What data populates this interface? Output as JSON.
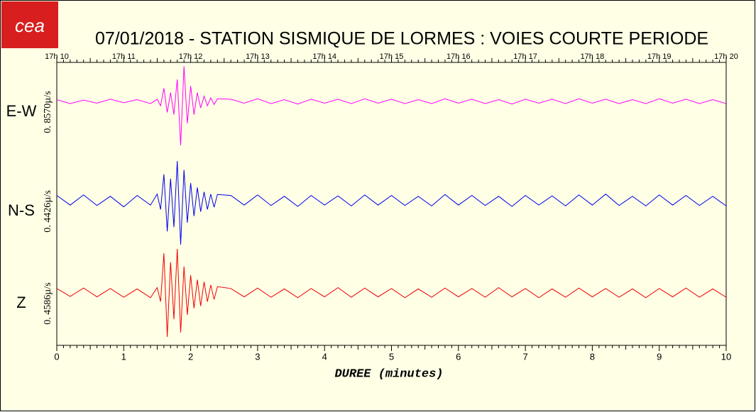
{
  "chart_data": {
    "type": "line",
    "logo": "cea",
    "title": "07/01/2018  -  STATION SISMIQUE DE LORMES : VOIES COURTE PERIODE",
    "xlabel": "DUREE (minutes)",
    "xlim": [
      0,
      10
    ],
    "xticks": [
      0,
      1,
      2,
      3,
      4,
      5,
      6,
      7,
      8,
      9,
      10
    ],
    "x2ticks": [
      {
        "value": 0,
        "label": "17h 10"
      },
      {
        "value": 1,
        "label": "17h 11"
      },
      {
        "value": 2,
        "label": "17h 12"
      },
      {
        "value": 3,
        "label": "17h 13"
      },
      {
        "value": 4,
        "label": "17h 14"
      },
      {
        "value": 5,
        "label": "17h 15"
      },
      {
        "value": 6,
        "label": "17h 16"
      },
      {
        "value": 7,
        "label": "17h 17"
      },
      {
        "value": 8,
        "label": "17h 18"
      },
      {
        "value": 9,
        "label": "17h 19"
      },
      {
        "value": 10,
        "label": "17h 20"
      }
    ],
    "ylim": [
      -1,
      1
    ],
    "x": [
      0,
      0.2,
      0.4,
      0.6,
      0.8,
      1,
      1.2,
      1.4,
      1.5,
      1.55,
      1.6,
      1.65,
      1.7,
      1.75,
      1.8,
      1.85,
      1.9,
      1.95,
      2,
      2.05,
      2.1,
      2.15,
      2.2,
      2.25,
      2.3,
      2.35,
      2.4,
      2.6,
      2.8,
      3,
      3.2,
      3.4,
      3.6,
      3.8,
      4,
      4.2,
      4.4,
      4.6,
      4.8,
      5,
      5.2,
      5.4,
      5.6,
      5.8,
      6,
      6.2,
      6.4,
      6.6,
      6.8,
      7,
      7.2,
      7.4,
      7.6,
      7.8,
      8,
      8.2,
      8.4,
      8.6,
      8.8,
      9,
      9.2,
      9.4,
      9.6,
      9.8,
      10
    ],
    "series": [
      {
        "name": "E-W",
        "scale_label": "0. 8570µ/s",
        "color": "#ff00ff",
        "values": [
          0.04,
          -0.05,
          0.03,
          -0.04,
          0.05,
          -0.03,
          0.04,
          -0.05,
          0.05,
          -0.1,
          0.3,
          -0.25,
          0.2,
          -0.3,
          0.5,
          -1,
          0.8,
          -0.5,
          0.35,
          -0.3,
          0.2,
          -0.15,
          0.12,
          -0.1,
          0.08,
          -0.07,
          0.06,
          0.05,
          -0.04,
          0.06,
          -0.05,
          0.04,
          -0.06,
          0.05,
          -0.04,
          0.05,
          -0.05,
          0.06,
          -0.04,
          0.05,
          -0.05,
          0.04,
          -0.05,
          0.06,
          -0.04,
          0.05,
          -0.05,
          0.04,
          -0.06,
          0.05,
          -0.04,
          0.05,
          -0.05,
          0.06,
          -0.04,
          0.05,
          -0.05,
          0.04,
          -0.05,
          0.06,
          -0.04,
          0.05,
          -0.05,
          0.04,
          -0.05
        ]
      },
      {
        "name": "N-S",
        "scale_label": "0. 4426µ/s",
        "color": "#0000ee",
        "values": [
          0.12,
          -0.1,
          0.13,
          -0.11,
          0.1,
          -0.14,
          0.12,
          -0.1,
          0.15,
          -0.2,
          0.6,
          -0.7,
          0.5,
          -0.6,
          0.9,
          -1,
          0.7,
          -0.5,
          0.4,
          -0.35,
          0.3,
          -0.25,
          0.2,
          -0.2,
          0.15,
          -0.15,
          0.14,
          0.12,
          -0.1,
          0.13,
          -0.11,
          0.1,
          -0.13,
          0.12,
          -0.1,
          0.11,
          -0.12,
          0.13,
          -0.1,
          0.12,
          -0.11,
          0.1,
          -0.12,
          0.14,
          -0.1,
          0.12,
          -0.11,
          0.1,
          -0.13,
          0.12,
          -0.1,
          0.11,
          -0.12,
          0.13,
          -0.1,
          0.15,
          -0.11,
          0.1,
          -0.12,
          0.13,
          -0.1,
          0.12,
          -0.11,
          0.1,
          -0.12
        ]
      },
      {
        "name": "Z",
        "scale_label": "0. 4586µ/s",
        "color": "#ee0000",
        "values": [
          0.1,
          -0.08,
          0.11,
          -0.09,
          0.1,
          -0.1,
          0.09,
          -0.11,
          0.12,
          -0.2,
          0.9,
          -1,
          0.7,
          -0.6,
          1,
          -0.9,
          0.6,
          -0.5,
          0.4,
          -0.35,
          0.3,
          -0.3,
          0.25,
          -0.2,
          0.18,
          -0.15,
          0.14,
          0.1,
          -0.09,
          0.11,
          -0.1,
          0.09,
          -0.11,
          0.1,
          -0.09,
          0.12,
          -0.1,
          0.11,
          -0.09,
          0.1,
          -0.11,
          0.09,
          -0.1,
          0.11,
          -0.09,
          0.1,
          -0.1,
          0.12,
          -0.09,
          0.1,
          -0.11,
          0.09,
          -0.1,
          0.11,
          -0.09,
          0.1,
          -0.1,
          0.09,
          -0.11,
          0.1,
          -0.09,
          0.11,
          -0.1,
          0.09,
          -0.1
        ]
      }
    ]
  }
}
